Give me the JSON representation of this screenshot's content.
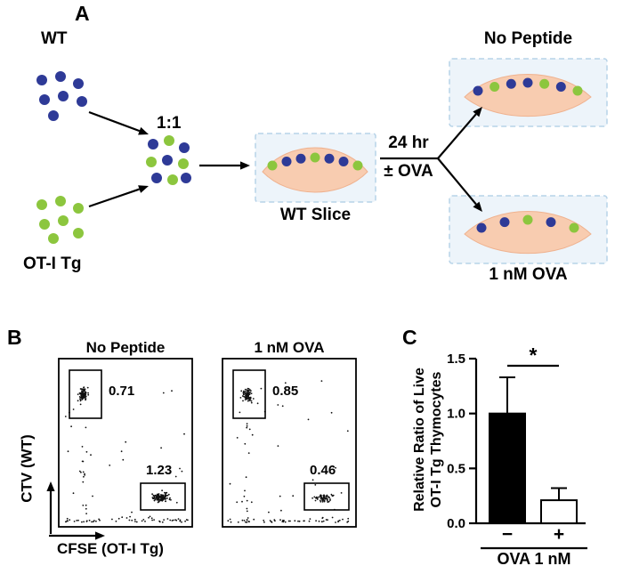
{
  "colors": {
    "wt_dot": "#2e3a97",
    "oti_dot": "#8cc63e",
    "slice_fill": "#f8ccb0",
    "slice_stroke": "#efb28f",
    "box_bg": "#edf4fa",
    "box_border": "#b7d3e8",
    "ink": "#000000"
  },
  "panel_a": {
    "label": "A",
    "wt_label": "WT",
    "oti_label": "OT-I Tg",
    "ratio_label": "1:1",
    "slice_label": "WT Slice",
    "time_label": "24 hr",
    "treatment_label": "± OVA",
    "no_peptide_label": "No Peptide",
    "ova_label": "1 nM OVA",
    "dot_patterns": {
      "wt_cluster": [
        "b",
        "b",
        "b",
        "b",
        "b",
        "b",
        "b"
      ],
      "oti_cluster": [
        "g",
        "g",
        "g",
        "g",
        "g",
        "g",
        "g"
      ],
      "mix_cluster": [
        "b",
        "g",
        "b",
        "g",
        "b",
        "g",
        "b",
        "g",
        "b"
      ],
      "wt_slice": [
        "g",
        "b",
        "b",
        "g",
        "b",
        "b",
        "g"
      ],
      "no_peptide_slice": [
        "b",
        "g",
        "b",
        "b",
        "g",
        "b",
        "g"
      ],
      "ova_slice": [
        "b",
        "b",
        "g",
        "b",
        "g"
      ]
    }
  },
  "panel_b": {
    "label": "B",
    "plots": [
      {
        "title": "No Peptide",
        "top_gate_value": "0.71",
        "bottom_gate_value": "1.23"
      },
      {
        "title": "1 nM OVA",
        "top_gate_value": "0.85",
        "bottom_gate_value": "0.46"
      }
    ],
    "y_axis_label": "CTV (WT)",
    "x_axis_label": "CFSE (OT-I Tg)"
  },
  "panel_c": {
    "label": "C",
    "y_axis_label": "Relative Ratio of Live\nOT-I Tg Thymocytes",
    "x_axis_label": "OVA 1 nM",
    "significance": "*"
  },
  "chart_data": [
    {
      "type": "bar",
      "panel": "C",
      "categories": [
        "−",
        "+"
      ],
      "values": [
        1.0,
        0.21
      ],
      "errors_upper": [
        0.33,
        0.11
      ],
      "bar_fills": [
        "#000000",
        "#ffffff"
      ],
      "ylabel": "Relative Ratio of Live OT-I Tg Thymocytes",
      "xlabel": "OVA 1 nM",
      "ylim": [
        0,
        1.5
      ],
      "yticks": [
        "0.0",
        "0.5",
        "1.0",
        "1.5"
      ],
      "significance": {
        "between": [
          "−",
          "+"
        ],
        "label": "*"
      },
      "grid": false,
      "legend": false
    },
    {
      "type": "scatter",
      "panel": "B",
      "x_axis": "CFSE (OT-I Tg)",
      "y_axis": "CTV (WT)",
      "plots": [
        {
          "title": "No Peptide",
          "gate_values": {
            "top_left": 0.71,
            "bottom_right": 1.23
          }
        },
        {
          "title": "1 nM OVA",
          "gate_values": {
            "top_left": 0.85,
            "bottom_right": 0.46
          }
        }
      ]
    }
  ]
}
